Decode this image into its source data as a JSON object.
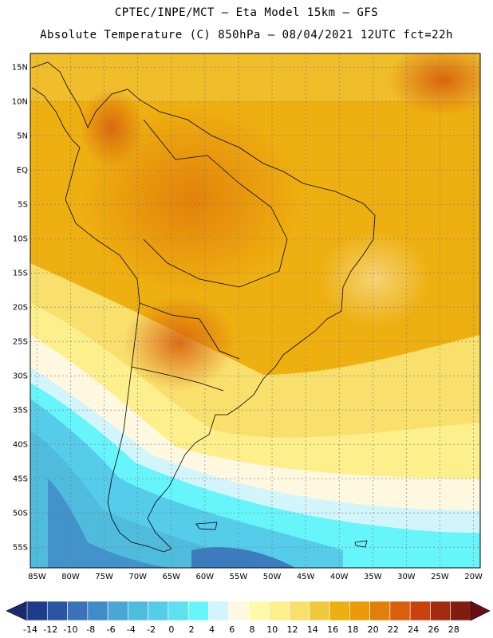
{
  "header": {
    "line1": "CPTEC/INPE/MCT –  Eta Model 15km – GFS",
    "line2": "Absolute Temperature (C) 850hPa – 08/04/2021 12UTC fct=22h"
  },
  "map": {
    "lon_range": [
      -86,
      -19
    ],
    "lat_range": [
      -58,
      17
    ],
    "lat_ticks": [
      "15N",
      "10N",
      "5N",
      "EQ",
      "5S",
      "10S",
      "15S",
      "20S",
      "25S",
      "30S",
      "35S",
      "40S",
      "45S",
      "50S",
      "55S"
    ],
    "lon_ticks": [
      "85W",
      "80W",
      "75W",
      "70W",
      "65W",
      "60W",
      "55W",
      "50W",
      "45W",
      "40W",
      "35W",
      "30W",
      "25W",
      "20W"
    ]
  },
  "colorbar": {
    "labels": [
      "-14",
      "-12",
      "-10",
      "-8",
      "-6",
      "-4",
      "-2",
      "0",
      "2",
      "4",
      "6",
      "8",
      "10",
      "12",
      "14",
      "16",
      "18",
      "20",
      "22",
      "24",
      "26",
      "28"
    ],
    "colors": [
      "#1e3c8c",
      "#2a55a3",
      "#3a73ba",
      "#3f8cc8",
      "#4aa6d4",
      "#4fbcdd",
      "#55ccea",
      "#5ee0ef",
      "#66f5fb",
      "#d2f5fb",
      "#fff8e0",
      "#fffaa8",
      "#fdef8c",
      "#f9df6c",
      "#f2c83c",
      "#eeb010",
      "#eb9a0a",
      "#e27f0a",
      "#d8600c",
      "#c8420e",
      "#a32a0e",
      "#801c10"
    ],
    "under_color": "#1a2a70",
    "over_color": "#6a0c18"
  }
}
